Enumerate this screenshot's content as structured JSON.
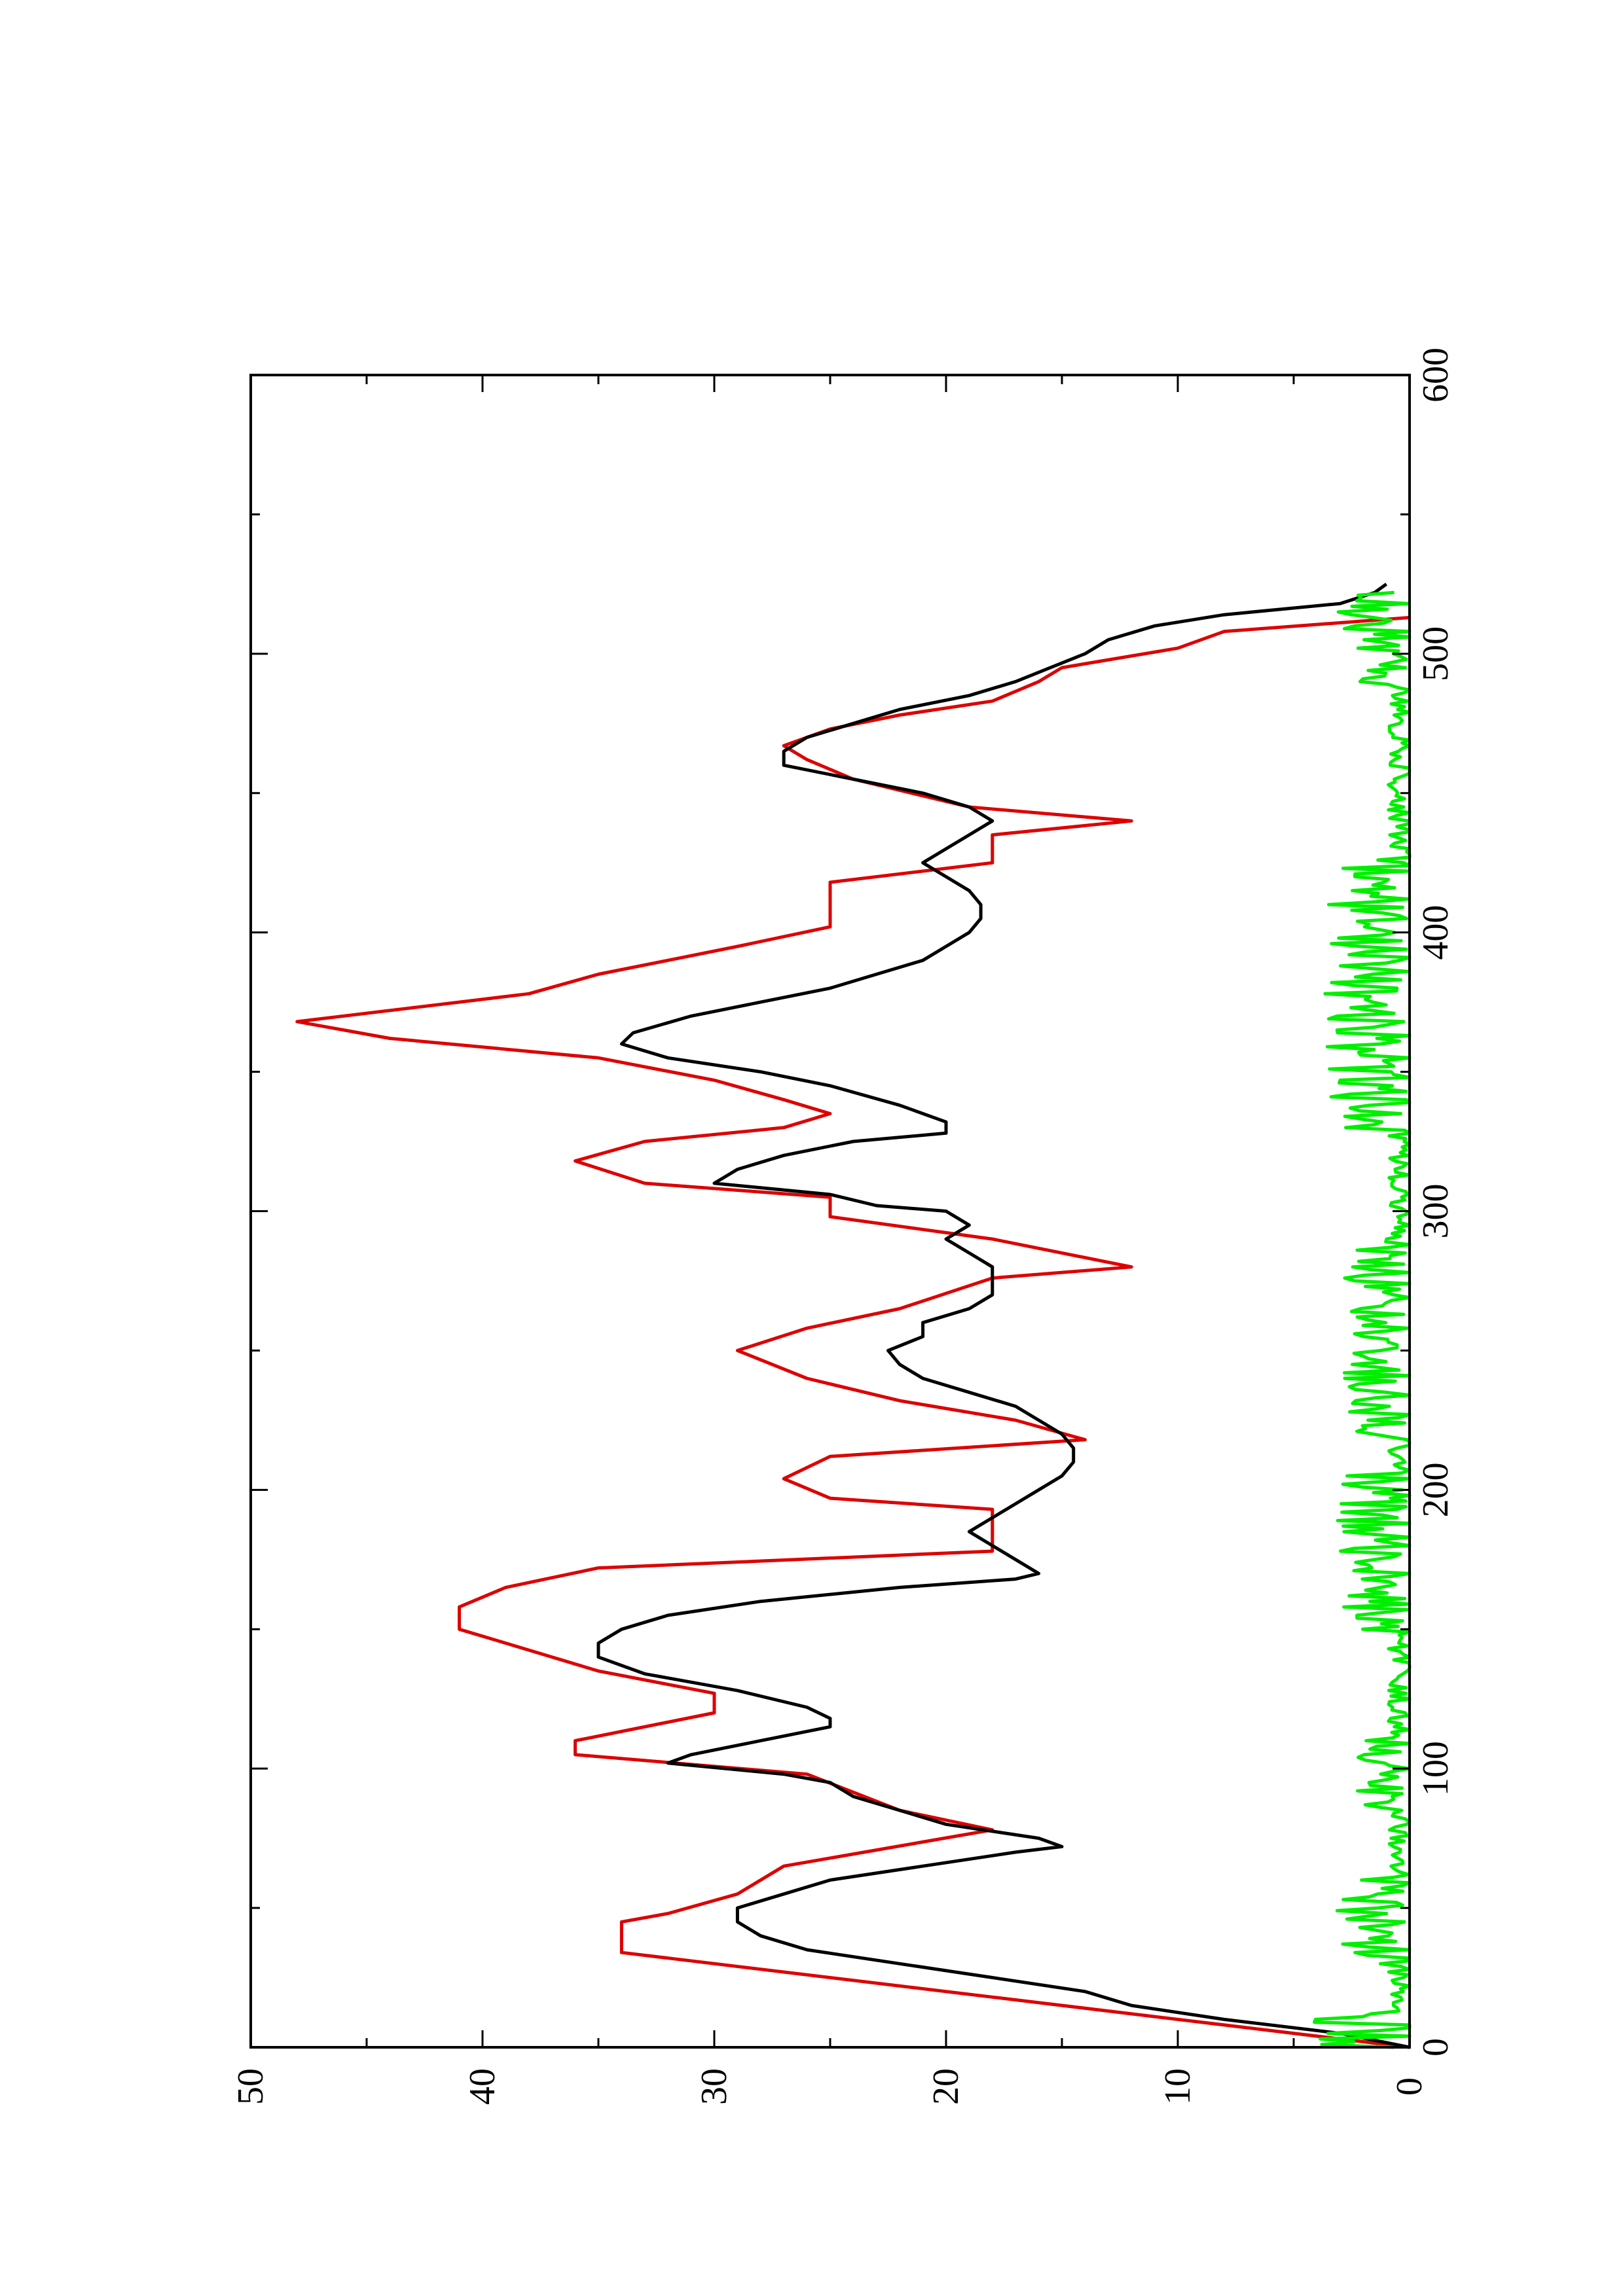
{
  "chart_data": {
    "type": "line",
    "title": "",
    "xlabel": "",
    "ylabel": "",
    "orientation": "rotated 90 degrees counter-clockwise",
    "xlim": [
      0,
      600
    ],
    "ylim": [
      0,
      50
    ],
    "x_ticks": [
      "0",
      "100",
      "200",
      "300",
      "400",
      "500",
      "600"
    ],
    "y_ticks": [
      "0",
      "10",
      "20",
      "30",
      "40",
      "50"
    ],
    "x_minor_step": 50,
    "y_minor_step": 5,
    "grid": false,
    "legend": "none",
    "series": [
      {
        "color": "#dd0000",
        "style": "step-line",
        "points": [
          [
            0,
            0
          ],
          [
            8,
            8
          ],
          [
            18,
            18
          ],
          [
            32,
            32
          ],
          [
            34,
            34
          ],
          [
            45,
            34
          ],
          [
            48,
            32
          ],
          [
            55,
            29
          ],
          [
            65,
            27
          ],
          [
            78,
            18
          ],
          [
            85,
            22
          ],
          [
            98,
            26
          ],
          [
            105,
            36
          ],
          [
            110,
            36
          ],
          [
            120,
            30
          ],
          [
            127,
            30
          ],
          [
            135,
            35
          ],
          [
            145,
            39
          ],
          [
            150,
            41
          ],
          [
            158,
            41
          ],
          [
            165,
            39
          ],
          [
            172,
            35
          ],
          [
            178,
            18
          ],
          [
            193,
            18
          ],
          [
            197,
            25
          ],
          [
            204,
            27
          ],
          [
            212,
            25
          ],
          [
            218,
            14
          ],
          [
            225,
            17
          ],
          [
            232,
            22
          ],
          [
            240,
            26
          ],
          [
            250,
            29
          ],
          [
            258,
            26
          ],
          [
            265,
            22
          ],
          [
            276,
            18
          ],
          [
            280,
            12
          ],
          [
            290,
            18
          ],
          [
            298,
            25
          ],
          [
            305,
            25
          ],
          [
            310,
            33
          ],
          [
            318,
            36
          ],
          [
            325,
            33
          ],
          [
            330,
            27
          ],
          [
            335,
            25
          ],
          [
            340,
            27
          ],
          [
            347,
            30
          ],
          [
            355,
            35
          ],
          [
            362,
            44
          ],
          [
            368,
            48
          ],
          [
            378,
            38
          ],
          [
            385,
            35
          ],
          [
            390,
            32
          ],
          [
            395,
            29
          ],
          [
            402,
            25
          ],
          [
            418,
            25
          ],
          [
            425,
            18
          ],
          [
            435,
            18
          ],
          [
            440,
            12
          ],
          [
            445,
            19
          ],
          [
            455,
            24
          ],
          [
            462,
            26
          ],
          [
            467,
            27
          ],
          [
            473,
            25
          ],
          [
            478,
            22
          ],
          [
            483,
            18
          ],
          [
            490,
            16
          ],
          [
            495,
            15
          ],
          [
            502,
            10
          ],
          [
            508,
            8
          ],
          [
            513,
            0
          ]
        ]
      },
      {
        "color": "#000000",
        "style": "line",
        "points": [
          [
            0,
            0
          ],
          [
            5,
            3
          ],
          [
            10,
            8
          ],
          [
            15,
            12
          ],
          [
            20,
            14
          ],
          [
            25,
            18
          ],
          [
            30,
            22
          ],
          [
            35,
            26
          ],
          [
            40,
            28
          ],
          [
            45,
            29
          ],
          [
            50,
            29
          ],
          [
            55,
            27
          ],
          [
            60,
            25
          ],
          [
            65,
            21
          ],
          [
            70,
            17
          ],
          [
            72,
            15
          ],
          [
            75,
            16
          ],
          [
            80,
            20
          ],
          [
            85,
            22
          ],
          [
            90,
            24
          ],
          [
            95,
            25
          ],
          [
            98,
            27
          ],
          [
            102,
            32
          ],
          [
            105,
            31
          ],
          [
            110,
            28
          ],
          [
            115,
            25
          ],
          [
            118,
            25
          ],
          [
            122,
            26
          ],
          [
            128,
            29
          ],
          [
            134,
            33
          ],
          [
            140,
            35
          ],
          [
            145,
            35
          ],
          [
            150,
            34
          ],
          [
            155,
            32
          ],
          [
            160,
            28
          ],
          [
            165,
            22
          ],
          [
            168,
            17
          ],
          [
            170,
            16
          ],
          [
            175,
            17
          ],
          [
            180,
            18
          ],
          [
            185,
            19
          ],
          [
            190,
            18
          ],
          [
            195,
            17
          ],
          [
            200,
            16
          ],
          [
            205,
            15
          ],
          [
            210,
            14.5
          ],
          [
            215,
            14.5
          ],
          [
            220,
            15
          ],
          [
            225,
            16
          ],
          [
            230,
            17
          ],
          [
            235,
            19
          ],
          [
            240,
            21
          ],
          [
            245,
            22
          ],
          [
            250,
            22.5
          ],
          [
            255,
            21
          ],
          [
            260,
            21
          ],
          [
            265,
            19
          ],
          [
            270,
            18
          ],
          [
            275,
            18
          ],
          [
            280,
            18
          ],
          [
            285,
            19
          ],
          [
            290,
            20
          ],
          [
            295,
            19
          ],
          [
            300,
            20
          ],
          [
            302,
            23
          ],
          [
            306,
            25
          ],
          [
            310,
            30
          ],
          [
            315,
            29
          ],
          [
            320,
            27
          ],
          [
            325,
            24
          ],
          [
            328,
            20
          ],
          [
            332,
            20
          ],
          [
            338,
            22
          ],
          [
            345,
            25
          ],
          [
            350,
            28
          ],
          [
            355,
            32
          ],
          [
            360,
            34
          ],
          [
            364,
            33.5
          ],
          [
            370,
            31
          ],
          [
            375,
            28
          ],
          [
            380,
            25
          ],
          [
            385,
            23
          ],
          [
            390,
            21
          ],
          [
            395,
            20
          ],
          [
            400,
            19
          ],
          [
            405,
            18.5
          ],
          [
            410,
            18.5
          ],
          [
            415,
            19
          ],
          [
            420,
            20
          ],
          [
            425,
            21
          ],
          [
            430,
            20
          ],
          [
            435,
            19
          ],
          [
            440,
            18
          ],
          [
            445,
            19
          ],
          [
            450,
            21
          ],
          [
            455,
            24
          ],
          [
            460,
            27
          ],
          [
            465,
            27
          ],
          [
            470,
            26
          ],
          [
            475,
            24
          ],
          [
            480,
            22
          ],
          [
            485,
            19
          ],
          [
            490,
            17
          ],
          [
            495,
            15.5
          ],
          [
            500,
            14
          ],
          [
            505,
            13
          ],
          [
            510,
            11
          ],
          [
            514,
            8
          ],
          [
            518,
            3
          ],
          [
            522,
            1.5
          ],
          [
            525,
            1
          ]
        ]
      },
      {
        "color": "#00ee00",
        "style": "noisy-line",
        "generator": {
          "seed": 7,
          "x_start": 0,
          "x_end": 522,
          "x_step": 1,
          "base": 0.6,
          "amplitude": 1.8,
          "bursts": [
            [
              0,
              12,
              1.6
            ],
            [
              30,
              60,
              1.2
            ],
            [
              85,
              110,
              1.0
            ],
            [
              150,
              205,
              1.2
            ],
            [
              220,
              290,
              1.1
            ],
            [
              330,
              430,
              1.4
            ],
            [
              490,
              522,
              1.2
            ]
          ]
        }
      }
    ]
  }
}
